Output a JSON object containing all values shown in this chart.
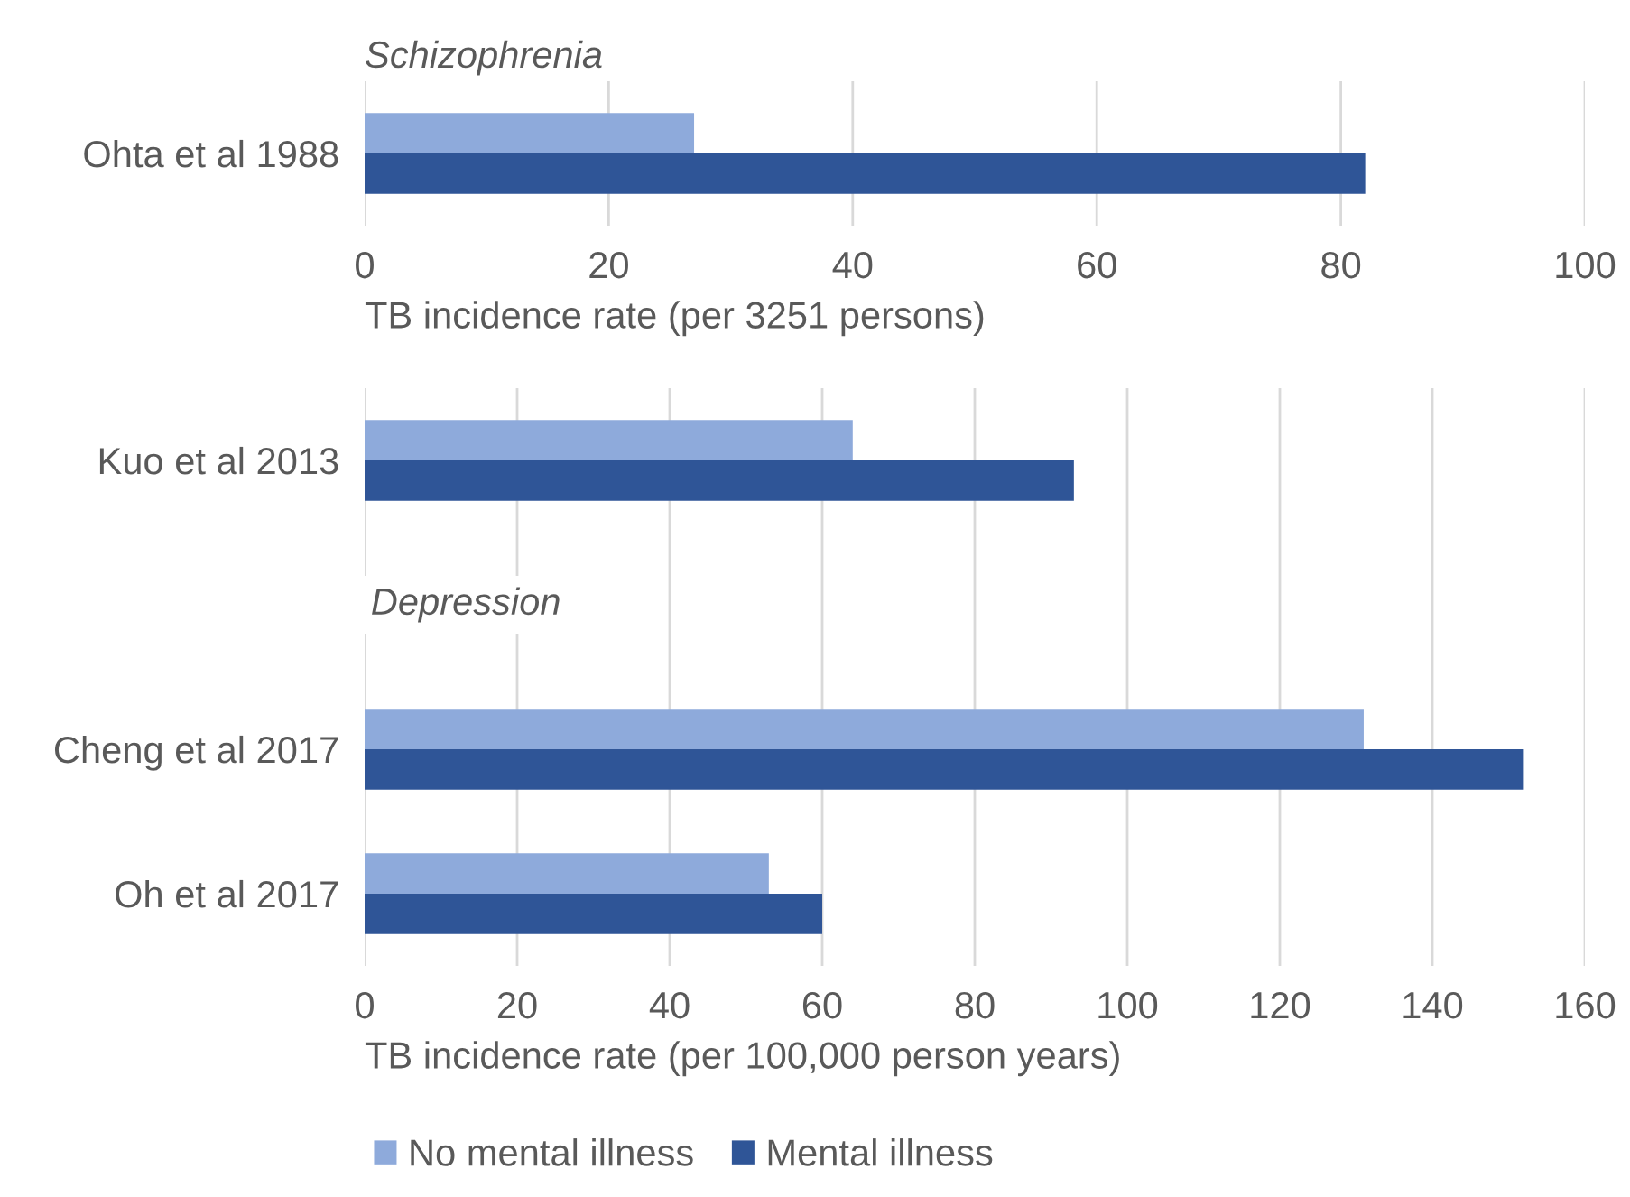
{
  "chart_data": [
    {
      "type": "bar",
      "orientation": "horizontal",
      "categories": [
        "Ohta et al 1988"
      ],
      "xlabel": "TB incidence rate (per 3251 persons)",
      "annotations": [
        "Schizophrenia"
      ],
      "series": [
        {
          "color": "#8eaadb",
          "values": [
            27
          ]
        },
        {
          "color": "#2f5597",
          "values": [
            82
          ]
        }
      ],
      "xlim": [
        0,
        100
      ],
      "xticks": [
        0,
        20,
        40,
        60,
        80,
        100
      ],
      "grid": "x",
      "legend": false
    },
    {
      "type": "bar",
      "orientation": "horizontal",
      "categories": [
        "Kuo et al 2013",
        null,
        "Cheng et al 2017",
        "Oh et al 2017"
      ],
      "xlabel": "TB incidence rate (per 100,000 person years)",
      "annotations": [
        "Depression"
      ],
      "series": [
        {
          "name": "No mental illness",
          "color": "#8eaadb",
          "values": [
            64,
            null,
            131,
            53
          ]
        },
        {
          "name": "Mental illness",
          "color": "#2f5597",
          "values": [
            93,
            null,
            152,
            60
          ]
        }
      ],
      "xlim": [
        0,
        160
      ],
      "xticks": [
        0,
        20,
        40,
        60,
        80,
        100,
        120,
        140,
        160
      ],
      "grid": "x",
      "legend": "bottom"
    }
  ]
}
